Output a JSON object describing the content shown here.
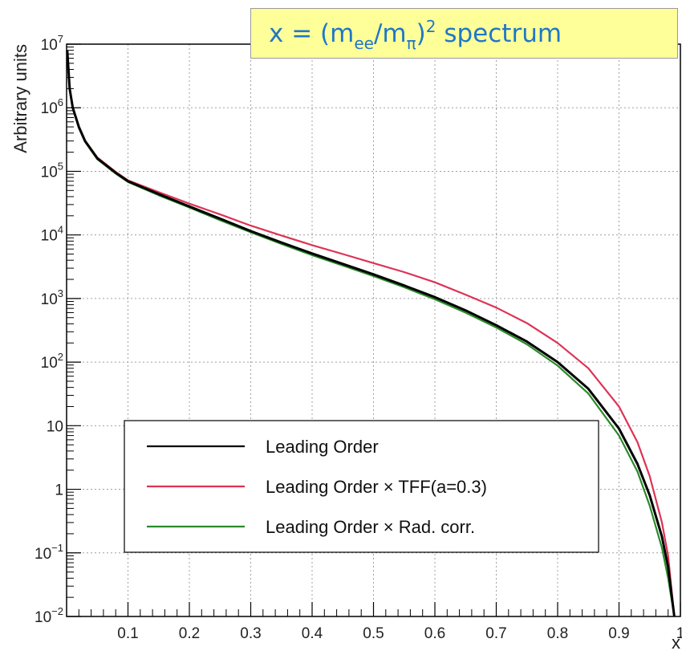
{
  "title": {
    "x_var": "x",
    "equals": " = (",
    "m1": "m",
    "sub1": "ee",
    "slash": "/",
    "m2": "m",
    "sub2": "π",
    "close": ")",
    "exp": "2",
    "tail": " spectrum"
  },
  "chart_data": {
    "type": "line",
    "xlabel": "x",
    "ylabel": "Arbitrary units",
    "xlim": [
      0,
      1
    ],
    "ylim": [
      0.01,
      10000000
    ],
    "yscale": "log",
    "grid": true,
    "legend_position": "lower-left",
    "x_tick_labels": [
      "0.1",
      "0.2",
      "0.3",
      "0.4",
      "0.5",
      "0.6",
      "0.7",
      "0.8",
      "0.9",
      "1"
    ],
    "y_tick_labels": [
      {
        "base": "10",
        "exp": "−2"
      },
      {
        "base": "10",
        "exp": "−1"
      },
      {
        "base": "1",
        "exp": ""
      },
      {
        "base": "10",
        "exp": ""
      },
      {
        "base": "10",
        "exp": "2"
      },
      {
        "base": "10",
        "exp": "3"
      },
      {
        "base": "10",
        "exp": "4"
      },
      {
        "base": "10",
        "exp": "5"
      },
      {
        "base": "10",
        "exp": "6"
      },
      {
        "base": "10",
        "exp": "7"
      }
    ],
    "series": [
      {
        "name": "Leading Order",
        "color": "#000000",
        "points": [
          [
            0.001,
            8000000
          ],
          [
            0.005,
            2000000
          ],
          [
            0.01,
            1000000
          ],
          [
            0.02,
            500000
          ],
          [
            0.03,
            300000
          ],
          [
            0.05,
            160000
          ],
          [
            0.08,
            95000
          ],
          [
            0.1,
            70000
          ],
          [
            0.15,
            44000
          ],
          [
            0.2,
            28000
          ],
          [
            0.25,
            18000
          ],
          [
            0.3,
            11500
          ],
          [
            0.35,
            7600
          ],
          [
            0.4,
            5100
          ],
          [
            0.45,
            3500
          ],
          [
            0.5,
            2400
          ],
          [
            0.55,
            1600
          ],
          [
            0.6,
            1050
          ],
          [
            0.65,
            650
          ],
          [
            0.7,
            380
          ],
          [
            0.75,
            210
          ],
          [
            0.8,
            100
          ],
          [
            0.85,
            38
          ],
          [
            0.9,
            9
          ],
          [
            0.93,
            2.5
          ],
          [
            0.95,
            0.8
          ],
          [
            0.97,
            0.18
          ],
          [
            0.98,
            0.06
          ],
          [
            0.99,
            0.01
          ]
        ]
      },
      {
        "name": "Leading Order × TFF(a=0.3)",
        "color": "#dd3355",
        "points": [
          [
            0.001,
            8000000
          ],
          [
            0.005,
            2000000
          ],
          [
            0.01,
            1000000
          ],
          [
            0.02,
            510000
          ],
          [
            0.03,
            305000
          ],
          [
            0.05,
            165000
          ],
          [
            0.08,
            98000
          ],
          [
            0.1,
            72000
          ],
          [
            0.15,
            47000
          ],
          [
            0.2,
            31000
          ],
          [
            0.25,
            21000
          ],
          [
            0.3,
            14000
          ],
          [
            0.35,
            9800
          ],
          [
            0.4,
            6900
          ],
          [
            0.45,
            5000
          ],
          [
            0.5,
            3600
          ],
          [
            0.55,
            2600
          ],
          [
            0.6,
            1800
          ],
          [
            0.65,
            1150
          ],
          [
            0.7,
            720
          ],
          [
            0.75,
            410
          ],
          [
            0.8,
            200
          ],
          [
            0.85,
            80
          ],
          [
            0.9,
            20
          ],
          [
            0.93,
            5.5
          ],
          [
            0.95,
            1.6
          ],
          [
            0.97,
            0.3
          ],
          [
            0.98,
            0.09
          ],
          [
            0.99,
            0.01
          ]
        ]
      },
      {
        "name": "Leading Order × Rad. corr.",
        "color": "#2a8a2a",
        "points": [
          [
            0.001,
            7600000
          ],
          [
            0.005,
            1900000
          ],
          [
            0.01,
            960000
          ],
          [
            0.02,
            480000
          ],
          [
            0.03,
            290000
          ],
          [
            0.05,
            155000
          ],
          [
            0.08,
            92000
          ],
          [
            0.1,
            68000
          ],
          [
            0.15,
            42000
          ],
          [
            0.2,
            27000
          ],
          [
            0.25,
            17000
          ],
          [
            0.3,
            11000
          ],
          [
            0.35,
            7200
          ],
          [
            0.4,
            4800
          ],
          [
            0.45,
            3300
          ],
          [
            0.5,
            2250
          ],
          [
            0.55,
            1500
          ],
          [
            0.6,
            970
          ],
          [
            0.65,
            600
          ],
          [
            0.7,
            350
          ],
          [
            0.75,
            190
          ],
          [
            0.8,
            88
          ],
          [
            0.85,
            32
          ],
          [
            0.9,
            7
          ],
          [
            0.93,
            1.9
          ],
          [
            0.95,
            0.55
          ],
          [
            0.97,
            0.12
          ],
          [
            0.98,
            0.04
          ],
          [
            0.99,
            0.01
          ]
        ]
      }
    ]
  }
}
